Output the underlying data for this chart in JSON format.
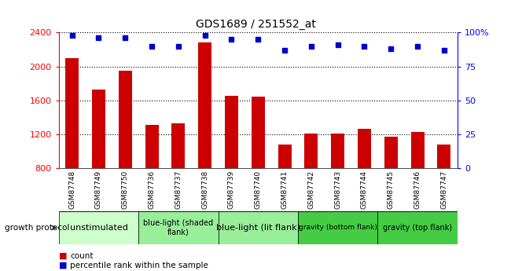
{
  "title": "GDS1689 / 251552_at",
  "samples": [
    "GSM87748",
    "GSM87749",
    "GSM87750",
    "GSM87736",
    "GSM87737",
    "GSM87738",
    "GSM87739",
    "GSM87740",
    "GSM87741",
    "GSM87742",
    "GSM87743",
    "GSM87744",
    "GSM87745",
    "GSM87746",
    "GSM87747"
  ],
  "counts": [
    2100,
    1730,
    1950,
    1310,
    1330,
    2280,
    1650,
    1640,
    1080,
    1210,
    1210,
    1260,
    1170,
    1230,
    1080
  ],
  "percentiles": [
    98,
    96,
    96,
    90,
    90,
    98,
    95,
    95,
    87,
    90,
    91,
    90,
    88,
    90,
    87
  ],
  "bar_color": "#cc0000",
  "dot_color": "#0000cc",
  "ylim_left": [
    800,
    2400
  ],
  "ylim_right": [
    0,
    100
  ],
  "yticks_left": [
    800,
    1200,
    1600,
    2000,
    2400
  ],
  "yticks_right": [
    0,
    25,
    50,
    75,
    100
  ],
  "ytick_labels_right": [
    "0",
    "25",
    "50",
    "75",
    "100%"
  ],
  "groups": [
    {
      "label": "unstimulated",
      "start": 0,
      "end": 3,
      "color": "#ccffcc"
    },
    {
      "label": "blue-light (shaded\nflank)",
      "start": 3,
      "end": 6,
      "color": "#99ee99"
    },
    {
      "label": "blue-light (lit flank)",
      "start": 6,
      "end": 9,
      "color": "#99ee99"
    },
    {
      "label": "gravity (bottom flank)",
      "start": 9,
      "end": 12,
      "color": "#44cc44"
    },
    {
      "label": "gravity (top flank)",
      "start": 12,
      "end": 15,
      "color": "#44cc44"
    }
  ],
  "group_text_sizes": [
    8,
    7,
    8,
    6.5,
    7
  ],
  "background_color": "#ffffff",
  "tick_area_color": "#cccccc",
  "legend_count_label": "count",
  "legend_pct_label": "percentile rank within the sample",
  "growth_protocol_label": "growth protocol"
}
